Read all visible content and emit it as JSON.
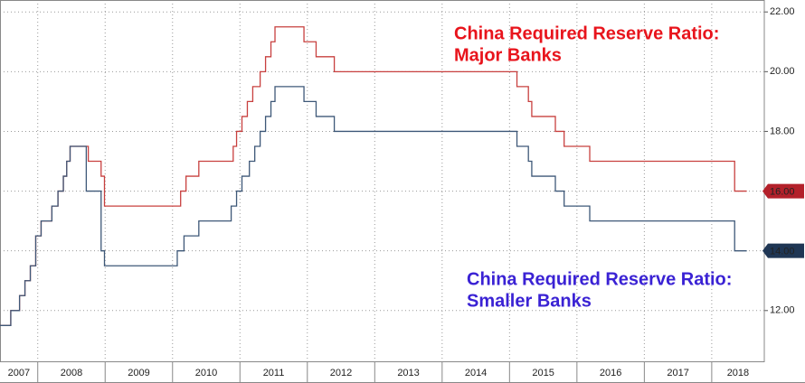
{
  "chart_data": {
    "type": "step-line",
    "xlim": [
      2007.44,
      2018.78
    ],
    "xticks": [
      2007,
      2008,
      2009,
      2010,
      2011,
      2012,
      2013,
      2014,
      2015,
      2016,
      2017,
      2018
    ],
    "ylim": [
      10.3,
      22.4
    ],
    "yticks": [
      {
        "value": 12,
        "label": "12.00"
      },
      {
        "value": 14,
        "label": "14.00"
      },
      {
        "value": 16,
        "label": "16.00"
      },
      {
        "value": 18,
        "label": "18.00"
      },
      {
        "value": 20,
        "label": "20.00"
      },
      {
        "value": 22,
        "label": "22.00"
      }
    ],
    "grid": true,
    "series": [
      {
        "name": "China Required Reserve Ratio: Major Banks",
        "color": "#c8403f",
        "end_label": "16.00",
        "end_color": "#b3202a",
        "x": [
          2007.44,
          2007.6,
          2007.73,
          2007.81,
          2007.89,
          2007.97,
          2008.05,
          2008.21,
          2008.3,
          2008.38,
          2008.43,
          2008.48,
          2008.75,
          2008.94,
          2008.99,
          2010.12,
          2010.2,
          2010.39,
          2010.9,
          2010.95,
          2011.03,
          2011.11,
          2011.19,
          2011.3,
          2011.38,
          2011.46,
          2011.52,
          2011.95,
          2012.13,
          2012.4,
          2015.11,
          2015.28,
          2015.33,
          2015.68,
          2015.81,
          2016.19,
          2018.34,
          2018.52
        ],
        "values": [
          11.5,
          12,
          12.5,
          13,
          13.5,
          14.5,
          15,
          15.5,
          16,
          16.5,
          17,
          17.5,
          17,
          16.5,
          15.5,
          16,
          16.5,
          17,
          17.5,
          18,
          18.5,
          19,
          19.5,
          20,
          20.5,
          21,
          21.5,
          21,
          20.5,
          20,
          19.5,
          19,
          18.5,
          18,
          17.5,
          17,
          16,
          16
        ]
      },
      {
        "name": "China Required Reserve Ratio: Smaller Banks",
        "color": "#3e5878",
        "end_label": "14.00",
        "end_color": "#1f3654",
        "x": [
          2007.44,
          2007.6,
          2007.73,
          2007.81,
          2007.89,
          2007.97,
          2008.05,
          2008.21,
          2008.3,
          2008.38,
          2008.43,
          2008.48,
          2008.72,
          2008.94,
          2008.99,
          2010.07,
          2010.17,
          2010.39,
          2010.87,
          2010.95,
          2011.03,
          2011.14,
          2011.22,
          2011.3,
          2011.38,
          2011.46,
          2011.52,
          2011.95,
          2012.13,
          2012.4,
          2015.11,
          2015.28,
          2015.33,
          2015.68,
          2015.81,
          2016.19,
          2018.34,
          2018.52
        ],
        "values": [
          11.5,
          12,
          12.5,
          13,
          13.5,
          14.5,
          15,
          15.5,
          16,
          16.5,
          17,
          17.5,
          16,
          14,
          13.5,
          14,
          14.5,
          15,
          15.5,
          16,
          16.5,
          17,
          17.5,
          18,
          18.5,
          19,
          19.5,
          19,
          18.5,
          18,
          17.5,
          17,
          16.5,
          16,
          15.5,
          15,
          14,
          14
        ]
      }
    ],
    "annotations": [
      {
        "lines": [
          "China Required Reserve Ratio:",
          "Major Banks"
        ],
        "color": "#e8141c"
      },
      {
        "lines": [
          "China Required Reserve Ratio:",
          "Smaller Banks"
        ],
        "color": "#3a22d4"
      }
    ]
  }
}
